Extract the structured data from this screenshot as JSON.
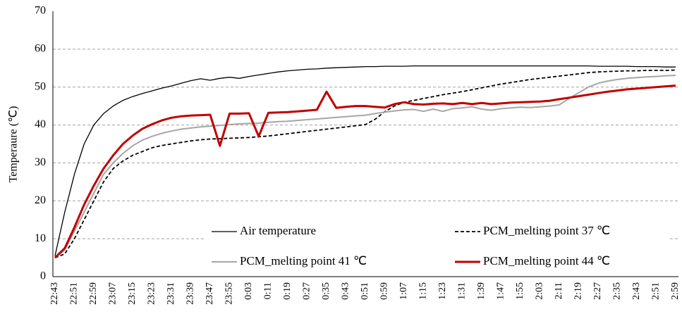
{
  "chart_data": {
    "type": "line",
    "ylabel": "Temperaure (℃)",
    "categories": [
      "22:43",
      null,
      "22:51",
      null,
      "22:59",
      null,
      "23:07",
      null,
      "23:15",
      null,
      "23:23",
      null,
      "23:31",
      null,
      "23:39",
      null,
      "23:47",
      null,
      "23:55",
      null,
      "0:03",
      null,
      "0:11",
      null,
      "0:19",
      null,
      "0:27",
      null,
      "0:35",
      null,
      "0:43",
      null,
      "0:51",
      null,
      "0:59",
      null,
      "1:07",
      null,
      "1:15",
      null,
      "1:23",
      null,
      "1:31",
      null,
      "1:39",
      null,
      "1:47",
      null,
      "1:55",
      null,
      "2:03",
      null,
      "2:11",
      null,
      "2:19",
      null,
      "2:27",
      null,
      "2:35",
      null,
      "2:43",
      null,
      "2:51",
      null,
      "2:59"
    ],
    "series": [
      {
        "name": "Air temperature",
        "color": "#000000",
        "line_style": "solid",
        "line_width": 1.3,
        "values": [
          5.5,
          17,
          27,
          35,
          40,
          43,
          45,
          46.5,
          47.5,
          48.3,
          49,
          49.7,
          50.3,
          51,
          51.7,
          52.2,
          51.8,
          52.3,
          52.6,
          52.3,
          52.8,
          53.2,
          53.6,
          54,
          54.3,
          54.5,
          54.7,
          54.8,
          55,
          55.1,
          55.2,
          55.3,
          55.4,
          55.4,
          55.5,
          55.5,
          55.5,
          55.6,
          55.6,
          55.6,
          55.6,
          55.6,
          55.6,
          55.6,
          55.6,
          55.6,
          55.6,
          55.6,
          55.6,
          55.6,
          55.6,
          55.6,
          55.6,
          55.6,
          55.6,
          55.6,
          55.5,
          55.5,
          55.5,
          55.5,
          55.4,
          55.4,
          55.4,
          55.3,
          55.3
        ]
      },
      {
        "name": "PCM_melting point 37 ℃",
        "color": "#000000",
        "line_style": "dashed",
        "line_width": 1.8,
        "values": [
          5,
          6,
          10,
          15,
          20,
          25,
          28.5,
          30.5,
          32,
          33,
          34,
          34.6,
          35,
          35.4,
          35.8,
          36.1,
          36.3,
          36.4,
          36.5,
          36.6,
          36.7,
          36.9,
          37.1,
          37.4,
          37.7,
          38,
          38.3,
          38.6,
          38.9,
          39.2,
          39.5,
          39.8,
          40.1,
          41.5,
          43.5,
          45,
          46,
          46.5,
          47,
          47.5,
          48,
          48.4,
          48.8,
          49.3,
          49.8,
          50.3,
          50.8,
          51.2,
          51.6,
          52,
          52.3,
          52.6,
          52.9,
          53.2,
          53.5,
          53.8,
          54,
          54.1,
          54.2,
          54.3,
          54.3,
          54.4,
          54.4,
          54.4,
          54.5
        ]
      },
      {
        "name": "PCM_melting point 41 ℃",
        "color": "#a6a6a6",
        "line_style": "solid",
        "line_width": 2,
        "values": [
          5,
          7,
          12,
          17,
          22,
          27,
          30,
          32.5,
          34.5,
          36,
          37,
          37.8,
          38.4,
          38.9,
          39.2,
          39.5,
          39.7,
          39.9,
          40.1,
          40.3,
          40.4,
          40.5,
          40.7,
          40.9,
          41,
          41.2,
          41.4,
          41.6,
          41.8,
          42,
          42.2,
          42.4,
          42.6,
          43,
          43.4,
          43.7,
          44,
          44.1,
          43.6,
          44.2,
          43.6,
          44.3,
          44.5,
          44.8,
          44.2,
          43.9,
          44.3,
          44.5,
          44.7,
          44.6,
          44.8,
          45,
          45.3,
          47,
          48.5,
          50,
          51,
          51.6,
          52,
          52.3,
          52.5,
          52.7,
          52.8,
          53,
          53.1
        ]
      },
      {
        "name": "PCM_melting point 44 ℃",
        "color": "#c00000",
        "line_style": "solid",
        "line_width": 3,
        "values": [
          5,
          7.5,
          13,
          19,
          24,
          28.5,
          32,
          35,
          37.2,
          39,
          40.2,
          41.2,
          41.9,
          42.3,
          42.5,
          42.6,
          42.7,
          34.5,
          43,
          43,
          43.1,
          37,
          43.2,
          43.3,
          43.4,
          43.6,
          43.8,
          44,
          48.8,
          44.5,
          44.8,
          45,
          45,
          44.8,
          44.6,
          45.5,
          46,
          45.5,
          45.4,
          45.6,
          45.7,
          45.5,
          45.8,
          45.5,
          45.8,
          45.5,
          45.7,
          45.9,
          46,
          46.1,
          46.2,
          46.4,
          46.8,
          47.2,
          47.6,
          48,
          48.4,
          48.8,
          49.1,
          49.4,
          49.6,
          49.8,
          50,
          50.2,
          50.4
        ]
      }
    ],
    "ylim": [
      0,
      70
    ],
    "yticks": [
      0,
      10,
      20,
      30,
      40,
      50,
      60,
      70
    ],
    "grid": true
  }
}
